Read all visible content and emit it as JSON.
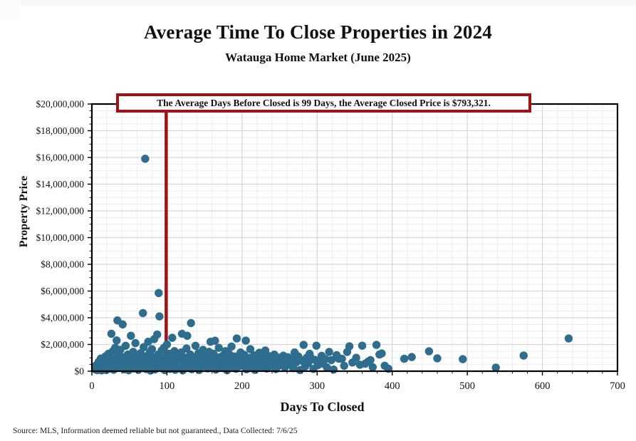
{
  "header": {
    "title": "Average Time To Close Properties in 2024",
    "subtitle": "Watauga Home Market (June 2025)"
  },
  "annotation": {
    "text": "The Average Days Before Closed is 99 Days, the Average Closed Price is $793,321."
  },
  "footer": {
    "source": "Source: MLS, Information deemed reliable but not guaranteed., Data Collected: 7/6/25"
  },
  "colors": {
    "accent_red": "#a31116",
    "point_blue": "#2e6d8e",
    "minor_grid": "#ededed",
    "major_grid": "#d6d6d6",
    "axis_black": "#000000"
  },
  "chart_data": {
    "type": "scatter",
    "title": "Average Time To Close Properties in 2024",
    "subtitle": "Watauga Home Market (June 2025)",
    "xlabel": "Days To Closed",
    "ylabel": "Property Price",
    "xlim": [
      0,
      700
    ],
    "ylim": [
      0,
      20000000
    ],
    "grid": "on",
    "legend": "none",
    "x_ticks": {
      "values": [
        0,
        100,
        200,
        300,
        400,
        500,
        600,
        700
      ],
      "labels": [
        "0",
        "100",
        "200",
        "300",
        "400",
        "500",
        "600",
        "700"
      ]
    },
    "y_ticks": {
      "values": [
        0,
        2000000,
        4000000,
        6000000,
        8000000,
        10000000,
        12000000,
        14000000,
        16000000,
        18000000,
        20000000
      ],
      "labels": [
        "$0",
        "$2,000,000",
        "$4,000,000",
        "$6,000,000",
        "$8,000,000",
        "$10,000,000",
        "$12,000,000",
        "$14,000,000",
        "$16,000,000",
        "$18,000,000",
        "$20,000,000"
      ]
    },
    "x_minor_step": 20,
    "y_minor_step": 500000,
    "average_line": {
      "x": 99,
      "color": "#a31116"
    },
    "stats": {
      "average_days_before_closed": 99,
      "average_closed_price": 793321
    },
    "point_color": "#2e6d8e",
    "point_radius": 5.7,
    "points": [
      [
        5,
        120000
      ],
      [
        6,
        450000
      ],
      [
        7,
        80000
      ],
      [
        8,
        300000
      ],
      [
        9,
        700000
      ],
      [
        10,
        150000
      ],
      [
        11,
        520000
      ],
      [
        12,
        950000
      ],
      [
        13,
        60000
      ],
      [
        14,
        380000
      ],
      [
        15,
        800000
      ],
      [
        16,
        230000
      ],
      [
        17,
        600000
      ],
      [
        18,
        1100000
      ],
      [
        19,
        90000
      ],
      [
        20,
        420000
      ],
      [
        21,
        750000
      ],
      [
        22,
        1300000
      ],
      [
        23,
        180000
      ],
      [
        24,
        550000
      ],
      [
        25,
        980000
      ],
      [
        26,
        2800000
      ],
      [
        27,
        320000
      ],
      [
        27,
        680000
      ],
      [
        28,
        1500000
      ],
      [
        29,
        110000
      ],
      [
        30,
        850000
      ],
      [
        31,
        1750000
      ],
      [
        33,
        2300000
      ],
      [
        34,
        3800000
      ],
      [
        35,
        1200000
      ],
      [
        36,
        490000
      ],
      [
        37,
        900000
      ],
      [
        38,
        1600000
      ],
      [
        39,
        250000
      ],
      [
        40,
        720000
      ],
      [
        41,
        3500000
      ],
      [
        42,
        1050000
      ],
      [
        43,
        140000
      ],
      [
        44,
        580000
      ],
      [
        45,
        1900000
      ],
      [
        46,
        360000
      ],
      [
        47,
        820000
      ],
      [
        48,
        1250000
      ],
      [
        49,
        70000
      ],
      [
        50,
        470000
      ],
      [
        52,
        2650000
      ],
      [
        53,
        1000000
      ],
      [
        54,
        640000
      ],
      [
        55,
        1450000
      ],
      [
        56,
        200000
      ],
      [
        57,
        890000
      ],
      [
        58,
        2100000
      ],
      [
        59,
        330000
      ],
      [
        60,
        760000
      ],
      [
        61,
        1150000
      ],
      [
        62,
        100000
      ],
      [
        63,
        540000
      ],
      [
        64,
        910000
      ],
      [
        65,
        1350000
      ],
      [
        66,
        280000
      ],
      [
        67,
        660000
      ],
      [
        68,
        4350000
      ],
      [
        69,
        1800000
      ],
      [
        70,
        1100000
      ],
      [
        71,
        15900000
      ],
      [
        72,
        160000
      ],
      [
        73,
        440000
      ],
      [
        74,
        970000
      ],
      [
        75,
        2200000
      ],
      [
        76,
        610000
      ],
      [
        77,
        1400000
      ],
      [
        78,
        50000
      ],
      [
        79,
        830000
      ],
      [
        80,
        1650000
      ],
      [
        81,
        350000
      ],
      [
        82,
        1020000
      ],
      [
        83,
        2400000
      ],
      [
        84,
        130000
      ],
      [
        85,
        560000
      ],
      [
        86,
        780000
      ],
      [
        87,
        2750000
      ],
      [
        88,
        1240000
      ],
      [
        89,
        5850000
      ],
      [
        90,
        4100000
      ],
      [
        91,
        400000
      ],
      [
        92,
        940000
      ],
      [
        93,
        1550000
      ],
      [
        94,
        220000
      ],
      [
        95,
        690000
      ],
      [
        96,
        1750000
      ],
      [
        97,
        80000
      ],
      [
        98,
        510000
      ],
      [
        99,
        1080000
      ],
      [
        100,
        2000000
      ],
      [
        101,
        300000
      ],
      [
        102,
        860000
      ],
      [
        103,
        1300000
      ],
      [
        104,
        170000
      ],
      [
        105,
        590000
      ],
      [
        106,
        990000
      ],
      [
        107,
        2500000
      ],
      [
        108,
        430000
      ],
      [
        109,
        740000
      ],
      [
        110,
        1500000
      ],
      [
        111,
        100000
      ],
      [
        112,
        650000
      ],
      [
        113,
        1150000
      ],
      [
        115,
        260000
      ],
      [
        117,
        880000
      ],
      [
        119,
        1400000
      ],
      [
        120,
        2800000
      ],
      [
        121,
        60000
      ],
      [
        123,
        490000
      ],
      [
        124,
        1000000
      ],
      [
        126,
        1700000
      ],
      [
        127,
        2650000
      ],
      [
        128,
        340000
      ],
      [
        130,
        770000
      ],
      [
        131,
        1250000
      ],
      [
        132,
        3600000
      ],
      [
        133,
        150000
      ],
      [
        135,
        620000
      ],
      [
        136,
        1050000
      ],
      [
        138,
        1900000
      ],
      [
        139,
        280000
      ],
      [
        141,
        710000
      ],
      [
        142,
        1350000
      ],
      [
        143,
        90000
      ],
      [
        145,
        530000
      ],
      [
        146,
        960000
      ],
      [
        148,
        1600000
      ],
      [
        149,
        400000
      ],
      [
        151,
        820000
      ],
      [
        152,
        1200000
      ],
      [
        154,
        210000
      ],
      [
        155,
        670000
      ],
      [
        156,
        1450000
      ],
      [
        158,
        2200000
      ],
      [
        159,
        360000
      ],
      [
        161,
        900000
      ],
      [
        162,
        1300000
      ],
      [
        164,
        2280000
      ],
      [
        165,
        120000
      ],
      [
        166,
        580000
      ],
      [
        168,
        1020000
      ],
      [
        169,
        1750000
      ],
      [
        171,
        450000
      ],
      [
        172,
        840000
      ],
      [
        174,
        1150000
      ],
      [
        175,
        240000
      ],
      [
        177,
        700000
      ],
      [
        178,
        1500000
      ],
      [
        180,
        70000
      ],
      [
        181,
        950000
      ],
      [
        183,
        1280000
      ],
      [
        184,
        520000
      ],
      [
        186,
        1850000
      ],
      [
        187,
        310000
      ],
      [
        189,
        760000
      ],
      [
        190,
        1100000
      ],
      [
        192,
        180000
      ],
      [
        193,
        2450000
      ],
      [
        194,
        630000
      ],
      [
        196,
        980000
      ],
      [
        198,
        1400000
      ],
      [
        199,
        410000
      ],
      [
        201,
        870000
      ],
      [
        203,
        1220000
      ],
      [
        205,
        2290000
      ],
      [
        206,
        140000
      ],
      [
        207,
        560000
      ],
      [
        209,
        1000000
      ],
      [
        211,
        1650000
      ],
      [
        212,
        330000
      ],
      [
        214,
        790000
      ],
      [
        216,
        1180000
      ],
      [
        217,
        100000
      ],
      [
        219,
        610000
      ],
      [
        221,
        930000
      ],
      [
        223,
        1380000
      ],
      [
        224,
        270000
      ],
      [
        226,
        720000
      ],
      [
        228,
        1060000
      ],
      [
        229,
        470000
      ],
      [
        231,
        1550000
      ],
      [
        233,
        200000
      ],
      [
        235,
        680000
      ],
      [
        237,
        1120000
      ],
      [
        239,
        380000
      ],
      [
        241,
        810000
      ],
      [
        243,
        1240000
      ],
      [
        245,
        160000
      ],
      [
        247,
        590000
      ],
      [
        249,
        1010000
      ],
      [
        251,
        440000
      ],
      [
        253,
        850000
      ],
      [
        255,
        1160000
      ],
      [
        257,
        290000
      ],
      [
        259,
        730000
      ],
      [
        261,
        1050000
      ],
      [
        263,
        520000
      ],
      [
        265,
        950000
      ],
      [
        268,
        230000
      ],
      [
        270,
        1400000
      ],
      [
        272,
        660000
      ],
      [
        275,
        1100000
      ],
      [
        277,
        90000
      ],
      [
        280,
        780000
      ],
      [
        282,
        1970000
      ],
      [
        284,
        350000
      ],
      [
        286,
        1000000
      ],
      [
        288,
        600000
      ],
      [
        290,
        1300000
      ],
      [
        292,
        980000
      ],
      [
        295,
        170000
      ],
      [
        297,
        840000
      ],
      [
        299,
        1910000
      ],
      [
        301,
        450000
      ],
      [
        303,
        670000
      ],
      [
        306,
        1150000
      ],
      [
        308,
        560000
      ],
      [
        311,
        900000
      ],
      [
        313,
        280000
      ],
      [
        316,
        1440000
      ],
      [
        319,
        830000
      ],
      [
        322,
        120000
      ],
      [
        326,
        1200000
      ],
      [
        329,
        930000
      ],
      [
        333,
        930000
      ],
      [
        336,
        400000
      ],
      [
        340,
        1440000
      ],
      [
        343,
        1860000
      ],
      [
        347,
        650000
      ],
      [
        352,
        1000000
      ],
      [
        357,
        480000
      ],
      [
        360,
        1910000
      ],
      [
        364,
        560000
      ],
      [
        368,
        720000
      ],
      [
        371,
        830000
      ],
      [
        374,
        300000
      ],
      [
        379,
        1970000
      ],
      [
        383,
        1250000
      ],
      [
        386,
        1330000
      ],
      [
        390,
        410000
      ],
      [
        395,
        180000
      ],
      [
        416,
        930000
      ],
      [
        426,
        1060000
      ],
      [
        449,
        1490000
      ],
      [
        460,
        960000
      ],
      [
        494,
        900000
      ],
      [
        538,
        270000
      ],
      [
        575,
        1170000
      ],
      [
        635,
        2450000
      ]
    ]
  }
}
